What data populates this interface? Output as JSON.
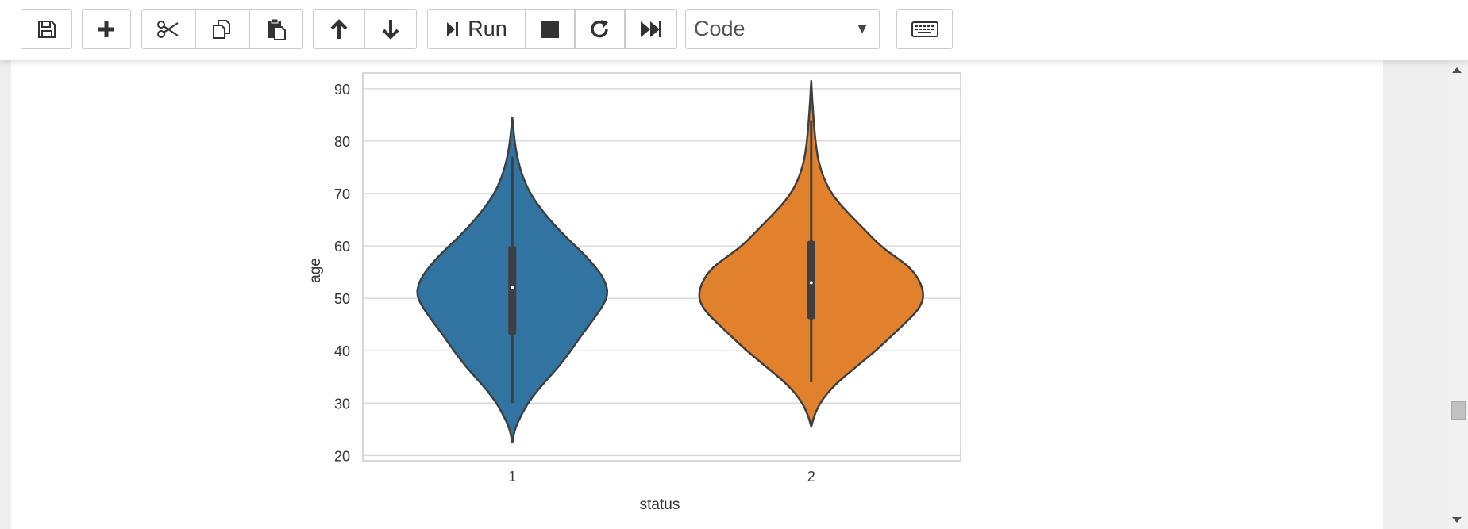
{
  "toolbar": {
    "run_label": "Run",
    "cell_type": "Code"
  },
  "icons": [
    "save-icon",
    "plus-icon",
    "scissors-icon",
    "copy-icon",
    "paste-icon",
    "arrow-up-icon",
    "arrow-down-icon",
    "step-forward-icon",
    "stop-icon",
    "restart-icon",
    "fast-forward-icon",
    "dropdown-caret-icon",
    "keyboard-icon"
  ],
  "chart_data": {
    "type": "violin",
    "categories": [
      "1",
      "2"
    ],
    "xlabel": "status",
    "ylabel": "age",
    "ylim": [
      19,
      93
    ],
    "yticks": [
      20,
      30,
      40,
      50,
      60,
      70,
      80,
      90
    ],
    "grid": true,
    "colors": [
      "#3274a1",
      "#e1812c"
    ],
    "series": [
      {
        "category": "1",
        "min": 30,
        "q1": 43,
        "median": 52,
        "q3": 60,
        "max": 77,
        "kde_range": [
          22.5,
          84.5
        ],
        "density": [
          [
            22.5,
            0.0
          ],
          [
            25,
            0.02
          ],
          [
            28,
            0.08
          ],
          [
            31,
            0.16
          ],
          [
            34,
            0.27
          ],
          [
            37,
            0.39
          ],
          [
            40,
            0.49
          ],
          [
            43,
            0.58
          ],
          [
            46,
            0.68
          ],
          [
            49,
            0.77
          ],
          [
            51,
            0.8
          ],
          [
            53,
            0.78
          ],
          [
            55,
            0.73
          ],
          [
            58,
            0.62
          ],
          [
            61,
            0.48
          ],
          [
            64,
            0.35
          ],
          [
            67,
            0.24
          ],
          [
            70,
            0.15
          ],
          [
            73,
            0.09
          ],
          [
            76,
            0.05
          ],
          [
            79,
            0.025
          ],
          [
            82,
            0.01
          ],
          [
            84.5,
            0.0
          ]
        ]
      },
      {
        "category": "2",
        "min": 34,
        "q1": 46,
        "median": 53,
        "q3": 61,
        "max": 84,
        "kde_range": [
          25.5,
          91.5
        ],
        "density": [
          [
            25.5,
            0.0
          ],
          [
            28,
            0.03
          ],
          [
            31,
            0.1
          ],
          [
            34,
            0.22
          ],
          [
            37,
            0.38
          ],
          [
            40,
            0.54
          ],
          [
            43,
            0.68
          ],
          [
            46,
            0.82
          ],
          [
            48,
            0.9
          ],
          [
            50,
            0.94
          ],
          [
            52,
            0.93
          ],
          [
            54,
            0.89
          ],
          [
            56,
            0.82
          ],
          [
            58,
            0.7
          ],
          [
            60,
            0.58
          ],
          [
            63,
            0.45
          ],
          [
            66,
            0.32
          ],
          [
            69,
            0.2
          ],
          [
            72,
            0.12
          ],
          [
            76,
            0.06
          ],
          [
            80,
            0.035
          ],
          [
            84,
            0.02
          ],
          [
            88,
            0.008
          ],
          [
            91.5,
            0.0
          ]
        ]
      }
    ]
  }
}
